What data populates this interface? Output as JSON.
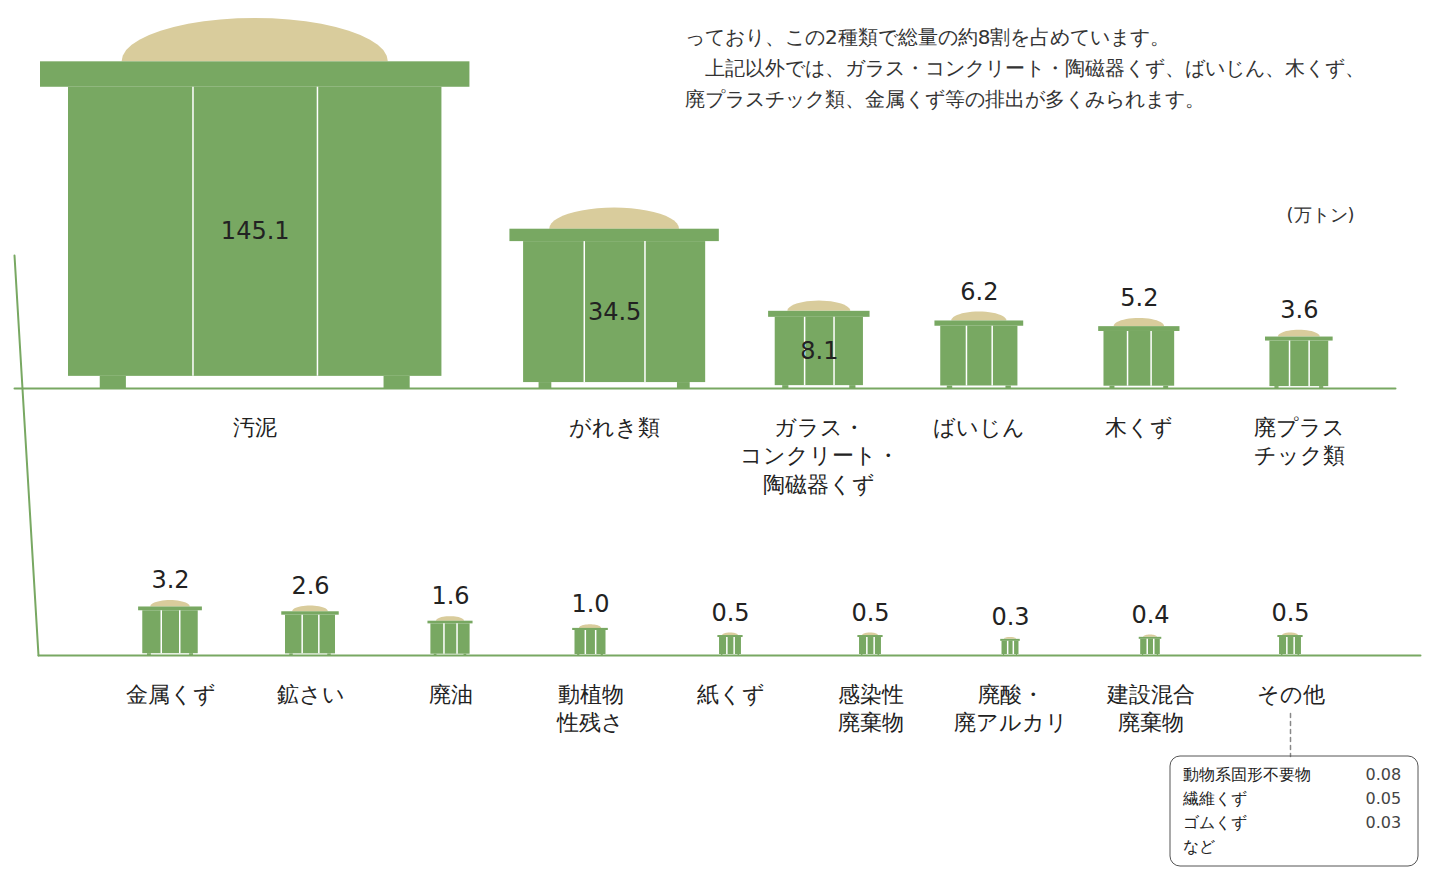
{
  "chart_data": [
    {
      "type": "bar",
      "notes": [
        "っており、この2種類で総量の約8割を占めています。",
        "　上記以外では、ガラス・コンクリート・陶磁器くず、ばいじん、木くず、廃プラスチック類、金属くず等の排出が多くみられます。"
      ],
      "ylabel": "(万トン)",
      "categories": [
        "汚泥",
        "がれき類",
        "ガラス・コンクリート・陶磁器くず",
        "ばいじん",
        "木くず",
        "廃プラスチック類"
      ],
      "values": [
        145.1,
        34.5,
        8.1,
        6.2,
        5.2,
        3.6
      ],
      "color": "#78a862",
      "data_labels": true,
      "tick_labels": "x"
    },
    {
      "type": "bar",
      "categories": [
        "金属くず",
        "鉱さい",
        "廃油",
        "動植物性残さ",
        "紙くず",
        "感染性廃棄物",
        "廃酸・廃アルカリ",
        "建設混合廃棄物",
        "その他"
      ],
      "values": [
        3.2,
        2.6,
        1.6,
        1.0,
        0.5,
        0.5,
        0.3,
        0.4,
        0.5
      ],
      "value_labels": [
        "3.2",
        "2.6",
        "1.6",
        "1.0",
        "0.5",
        "0.5",
        "0.3",
        "0.4",
        "0.5"
      ],
      "color": "#78a862",
      "data_labels": true,
      "tick_labels": "x",
      "annotations": [
        {
          "label": "動物系固形不要物",
          "value": 0.08
        },
        {
          "label": "繊維くず",
          "value": 0.05
        },
        {
          "label": "ゴムくず",
          "value": 0.03
        },
        {
          "label": "など"
        }
      ]
    }
  ]
}
